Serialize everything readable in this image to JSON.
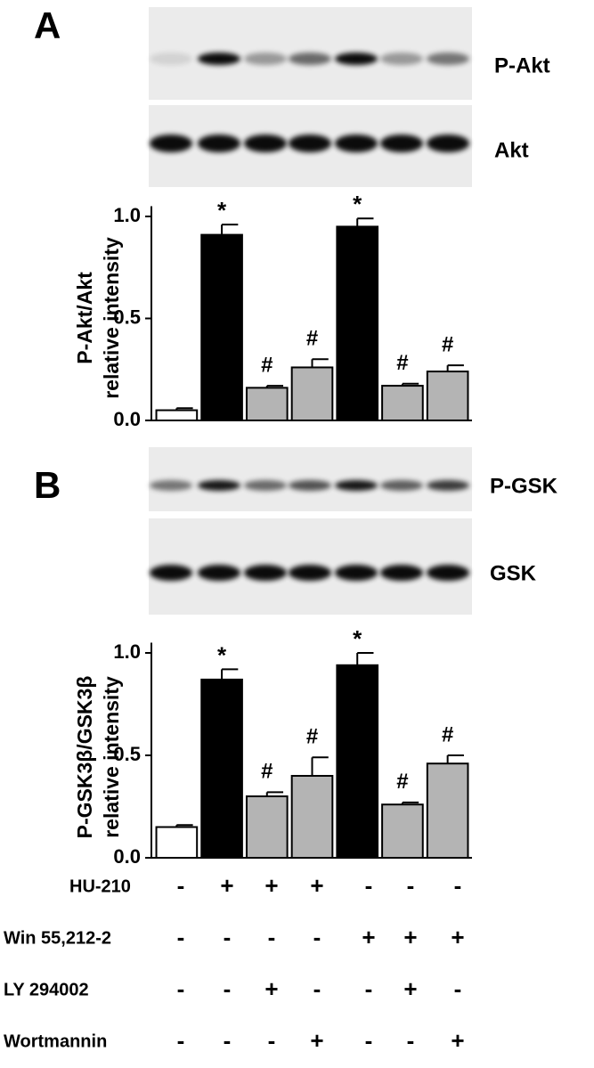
{
  "panels": {
    "a": {
      "letter": "A",
      "blot_labels": [
        "P-Akt",
        "Akt"
      ]
    },
    "b": {
      "letter": "B",
      "blot_labels": [
        "P-GSK",
        "GSK"
      ]
    }
  },
  "chart_data": [
    {
      "type": "bar",
      "ylabel": [
        "P-Akt/Akt",
        "relative intensity"
      ],
      "values": [
        0.05,
        0.91,
        0.16,
        0.26,
        0.95,
        0.17,
        0.24
      ],
      "errors": [
        0.01,
        0.05,
        0.01,
        0.04,
        0.04,
        0.01,
        0.03
      ],
      "annotations": [
        null,
        "*",
        "#",
        "#",
        "*",
        "#",
        "#"
      ],
      "colors": [
        "#ffffff",
        "#000000",
        "#b4b4b4",
        "#b4b4b4",
        "#000000",
        "#b4b4b4",
        "#b4b4b4"
      ],
      "ylim": [
        0,
        1.05
      ],
      "yticks": [
        {
          "value": 0,
          "label": "0.0"
        },
        {
          "value": 0.5,
          "label": "0.5"
        },
        {
          "value": 1,
          "label": "1.0"
        }
      ]
    },
    {
      "type": "bar",
      "ylabel": [
        "P-GSK3β/GSK3β",
        "relative intensity"
      ],
      "values": [
        0.15,
        0.87,
        0.3,
        0.4,
        0.94,
        0.26,
        0.46
      ],
      "errors": [
        0.01,
        0.05,
        0.02,
        0.09,
        0.06,
        0.01,
        0.04
      ],
      "annotations": [
        null,
        "*",
        "#",
        "#",
        "*",
        "#",
        "#"
      ],
      "colors": [
        "#ffffff",
        "#000000",
        "#b4b4b4",
        "#b4b4b4",
        "#000000",
        "#b4b4b4",
        "#b4b4b4"
      ],
      "ylim": [
        0,
        1.05
      ],
      "yticks": [
        {
          "value": 0,
          "label": "0.0"
        },
        {
          "value": 0.5,
          "label": "0.5"
        },
        {
          "value": 1,
          "label": "1.0"
        }
      ]
    }
  ],
  "treatments": [
    {
      "name": "HU-210",
      "signs": [
        "-",
        "+",
        "+",
        "+",
        "-",
        "-",
        "-"
      ]
    },
    {
      "name": "Win 55,212-2",
      "signs": [
        "-",
        "-",
        "-",
        "-",
        "+",
        "+",
        "+"
      ]
    },
    {
      "name": "LY 294002",
      "signs": [
        "-",
        "-",
        "+",
        "-",
        "-",
        "+",
        "-"
      ]
    },
    {
      "name": "Wortmannin",
      "signs": [
        "-",
        "-",
        "-",
        "+",
        "-",
        "-",
        "+"
      ]
    }
  ]
}
